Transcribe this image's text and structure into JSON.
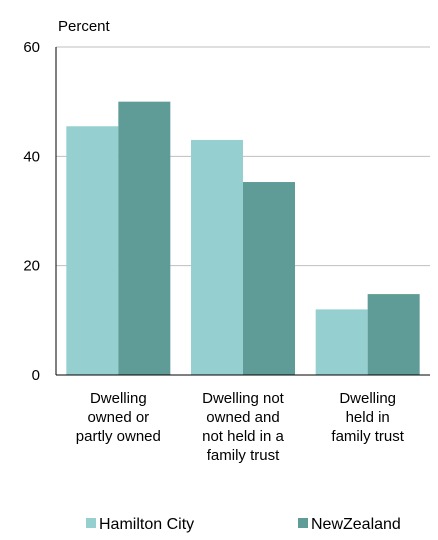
{
  "chart_data": {
    "type": "bar",
    "ylabel": "Percent",
    "ylim": [
      0,
      60
    ],
    "yticks": [
      "0",
      "20",
      "40",
      "60"
    ],
    "grid": true,
    "categories": [
      [
        "Dwelling",
        "owned or",
        "partly owned"
      ],
      [
        "Dwelling not",
        "owned and",
        "not held in a",
        "family trust"
      ],
      [
        "Dwelling",
        "held in",
        "family trust"
      ]
    ],
    "series": [
      {
        "name": "Hamilton City",
        "color": "#96cfd0",
        "values": [
          45.5,
          43,
          12
        ]
      },
      {
        "name": "NewZealand",
        "color": "#5f9c97",
        "values": [
          50,
          35.3,
          14.8
        ]
      }
    ],
    "legend_position": "bottom"
  }
}
